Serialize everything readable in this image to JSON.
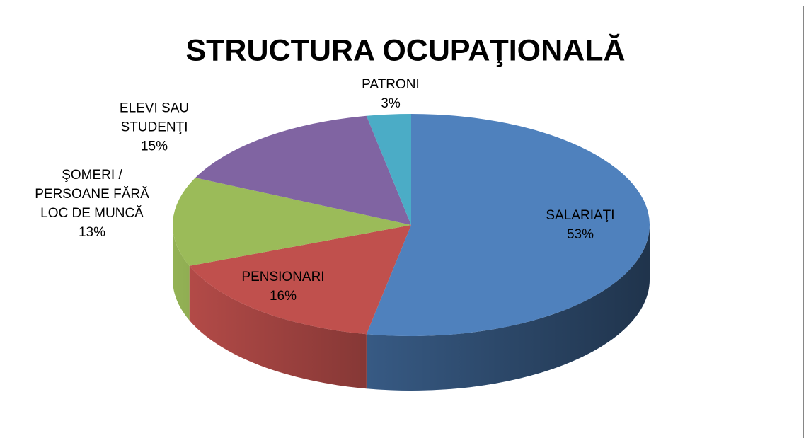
{
  "chart_data": {
    "type": "pie",
    "title": "STRUCTURA OCUPAŢIONALĂ",
    "categories": [
      "SALARIAŢI",
      "PENSIONARI",
      "ŞOMERI / PERSOANE FĂRĂ LOC DE MUNCĂ",
      "ELEVI SAU STUDENŢI",
      "PATRONI"
    ],
    "values": [
      53,
      16,
      13,
      15,
      3
    ],
    "value_labels": [
      "53%",
      "16%",
      "13%",
      "15%",
      "3%"
    ],
    "colors": [
      "#4f81bd",
      "#c0504d",
      "#9bbb59",
      "#8064a2",
      "#4bacc6"
    ]
  }
}
